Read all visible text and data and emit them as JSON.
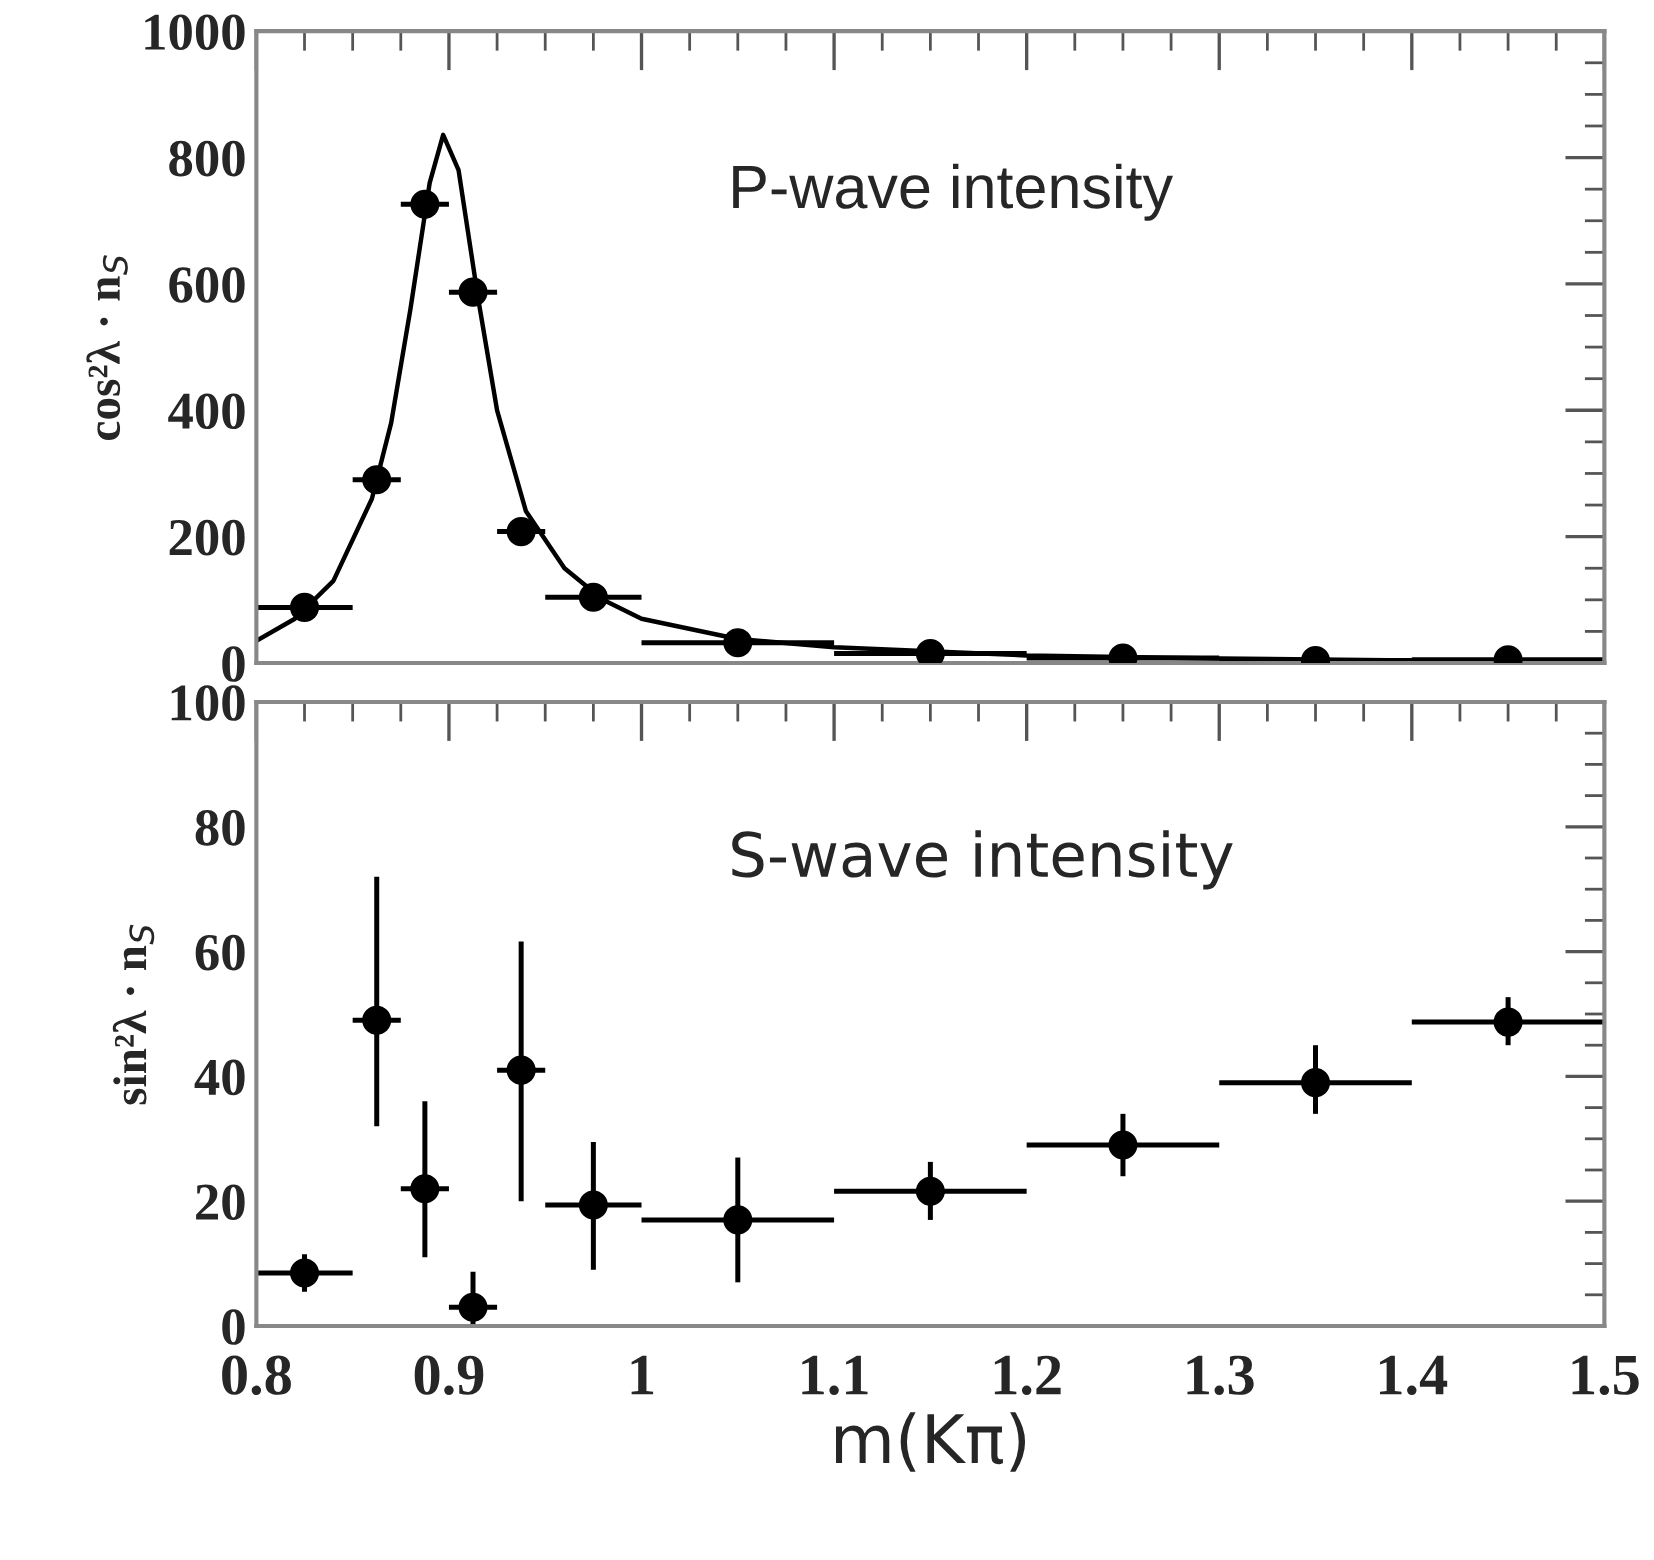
{
  "chart_data": [
    {
      "type": "scatter",
      "ylabel": "cos²λ · n$_{S}$",
      "xlim": [
        0.8,
        1.5
      ],
      "ylim": [
        0,
        1000
      ],
      "xticks": [
        0.8,
        0.9,
        1,
        1.1,
        1.2,
        1.3,
        1.4,
        1.5
      ],
      "yticks": [
        0,
        200,
        400,
        600,
        800,
        1000
      ],
      "tick_labels": "y",
      "annotations": [
        "P-wave intensity"
      ],
      "series": [
        {
          "marker": "circle",
          "color": "#000000",
          "x": [
            0.825,
            0.8625,
            0.8875,
            0.9125,
            0.9375,
            0.975,
            1.05,
            1.15,
            1.25,
            1.35,
            1.45
          ],
          "values": [
            88,
            290,
            726,
            587,
            208,
            104,
            32,
            15,
            8,
            4,
            5
          ],
          "xerrors": [
            0.025,
            0.0125,
            0.0125,
            0.0125,
            0.0125,
            0.025,
            0.05,
            0.05,
            0.05,
            0.05,
            0.05
          ]
        },
        {
          "type": "line",
          "marker": "none",
          "color": "#000000",
          "x": [
            0.8,
            0.82,
            0.84,
            0.86,
            0.87,
            0.88,
            0.89,
            0.897,
            0.905,
            0.915,
            0.925,
            0.94,
            0.96,
            0.98,
            1.0,
            1.05,
            1.1,
            1.2,
            1.3,
            1.4,
            1.5
          ],
          "values": [
            35,
            70,
            130,
            260,
            380,
            560,
            760,
            836,
            780,
            580,
            400,
            240,
            150,
            100,
            70,
            38,
            25,
            12,
            7,
            4,
            3
          ]
        }
      ]
    },
    {
      "type": "scatter",
      "xlabel": "m(Kπ)",
      "ylabel": "sin²λ · n$_{S}$",
      "xlim": [
        0.8,
        1.5
      ],
      "ylim": [
        0,
        100
      ],
      "xticks": [
        0.8,
        0.9,
        1,
        1.1,
        1.2,
        1.3,
        1.4,
        1.5
      ],
      "yticks": [
        0,
        20,
        40,
        60,
        80,
        100
      ],
      "marker": "circle",
      "annotations": [
        "S-wave intensity"
      ],
      "series": [
        {
          "color": "#000000",
          "x": [
            0.825,
            0.8625,
            0.8875,
            0.9125,
            0.9375,
            0.975,
            1.05,
            1.15,
            1.25,
            1.35,
            1.45
          ],
          "values": [
            8.5,
            49,
            22,
            3,
            41,
            19.4,
            17,
            21.6,
            29,
            39,
            48.7
          ],
          "errors": [
            [
              5.5,
              11.5
            ],
            [
              32,
              72
            ],
            [
              11,
              36
            ],
            [
              0,
              8.7
            ],
            [
              20,
              61.6
            ],
            [
              9,
              29.5
            ],
            [
              7,
              27
            ],
            [
              17,
              26.3
            ],
            [
              24,
              34
            ],
            [
              34,
              45
            ],
            [
              45,
              52.7
            ]
          ],
          "xerrors": [
            0.025,
            0.0125,
            0.0125,
            0.0125,
            0.0125,
            0.025,
            0.05,
            0.05,
            0.05,
            0.05,
            0.05
          ]
        }
      ]
    }
  ]
}
